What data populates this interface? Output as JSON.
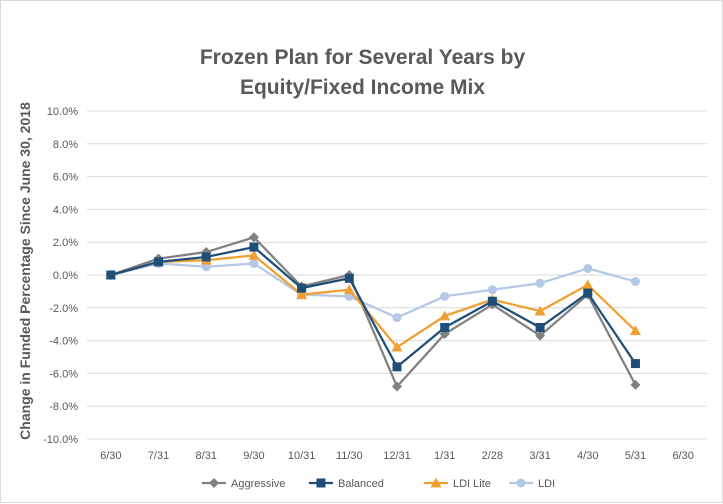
{
  "chart_data": {
    "type": "line",
    "title": [
      "Frozen Plan for Several Years by",
      "Equity/Fixed Income Mix"
    ],
    "xlabel": "",
    "ylabel": "Change in Funded Percentage Since June 30, 2018",
    "categories": [
      "6/30",
      "7/31",
      "8/31",
      "9/30",
      "10/31",
      "11/30",
      "12/31",
      "1/31",
      "2/28",
      "3/31",
      "4/30",
      "5/31",
      "6/30"
    ],
    "ylim": [
      -10.0,
      10.0
    ],
    "yticks": [
      "10.0%",
      "8.0%",
      "6.0%",
      "4.0%",
      "2.0%",
      "0.0%",
      "-2.0%",
      "-4.0%",
      "-6.0%",
      "-8.0%",
      "-10.0%"
    ],
    "ytick_values": [
      10,
      8,
      6,
      4,
      2,
      0,
      -2,
      -4,
      -6,
      -8,
      -10
    ],
    "grid": true,
    "legend_position": "bottom",
    "series": [
      {
        "name": "LDI",
        "color": "#b4c7e7",
        "marker": "circle",
        "values": [
          0.0,
          0.7,
          0.5,
          0.7,
          -1.2,
          -1.3,
          -2.6,
          -1.3,
          -0.9,
          -0.5,
          0.4,
          -0.4,
          null
        ]
      },
      {
        "name": "Aggressive",
        "color": "#808080",
        "marker": "diamond",
        "values": [
          0.0,
          1.0,
          1.4,
          2.3,
          -0.7,
          0.0,
          -6.8,
          -3.6,
          -1.8,
          -3.7,
          -1.2,
          -6.7,
          null
        ]
      },
      {
        "name": "LDI Lite",
        "color": "#f0a030",
        "marker": "triangle",
        "values": [
          0.0,
          0.8,
          0.9,
          1.2,
          -1.2,
          -0.9,
          -4.4,
          -2.5,
          -1.5,
          -2.2,
          -0.6,
          -3.4,
          null
        ]
      },
      {
        "name": "Balanced",
        "color": "#1f4e79",
        "marker": "square",
        "values": [
          0.0,
          0.8,
          1.1,
          1.7,
          -0.8,
          -0.2,
          -5.6,
          -3.2,
          -1.6,
          -3.2,
          -1.1,
          -5.4,
          null
        ]
      }
    ],
    "legend_order": [
      "Aggressive",
      "Balanced",
      "LDI Lite",
      "LDI"
    ]
  }
}
